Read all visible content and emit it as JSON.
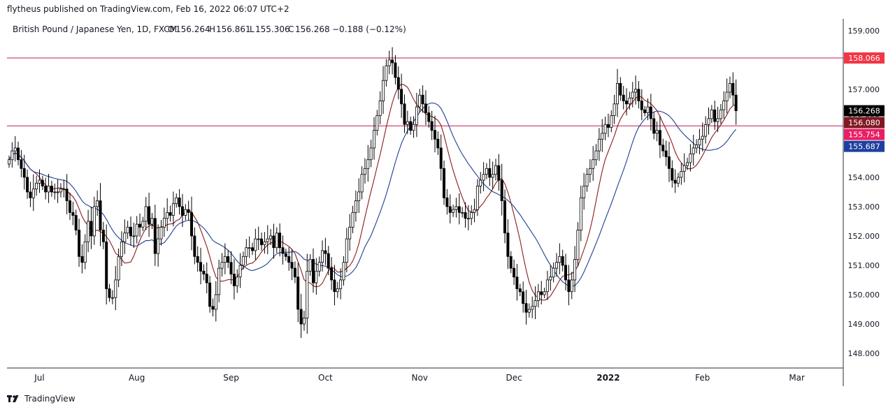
{
  "header": {
    "text": "flytheus published on TradingView.com, Feb 16, 2022 06:07 UTC+2"
  },
  "legend": {
    "symbol": "British Pound / Japanese Yen, 1D, FXCM",
    "open_label": "O",
    "open": "156.264",
    "high_label": "H",
    "high": "156.861",
    "low_label": "L",
    "low": "155.306",
    "close_label": "C",
    "close": "156.268",
    "change": "−0.188 (−0.12%)"
  },
  "footer": {
    "brand": "TradingView"
  },
  "colors": {
    "up_body": "#ffffff",
    "down_body": "#000000",
    "wick": "#000000",
    "ma_fast": "#8b1a1a",
    "ma_slow": "#1f3f8f",
    "hline": "#c2185b",
    "res_tag": "#f23645",
    "close_tag": "#000000",
    "ma_fast_tag": "#801922",
    "ma_slow_tag": "#1e3f9e",
    "sup_tag": "#e91e63",
    "axis_text": "#131722",
    "axis_line": "#2a2e39"
  },
  "chart_data": {
    "type": "candlestick",
    "title": "British Pound / Japanese Yen, 1D, FXCM",
    "ylim": [
      147.5,
      159.4
    ],
    "y_ticks": [
      "159.000",
      "158.000",
      "157.000",
      "156.000",
      "155.000",
      "154.000",
      "153.000",
      "152.000",
      "151.000",
      "150.000",
      "149.000",
      "148.000"
    ],
    "x_ticks": [
      "Jul",
      "Aug",
      "Sep",
      "Oct",
      "Nov",
      "Dec",
      "2022",
      "Feb",
      "Mar"
    ],
    "x_tick_bar_index": [
      10,
      42,
      73,
      104,
      135,
      166,
      197,
      228,
      259
    ],
    "horizontal_lines": [
      {
        "value": 158.066,
        "label": "158.066"
      },
      {
        "value": 155.754,
        "label": "155.754"
      }
    ],
    "price_tags": [
      {
        "label": "158.066",
        "value": 158.066,
        "color": "res_tag"
      },
      {
        "label": "156.268",
        "value": 156.268,
        "color": "close_tag"
      },
      {
        "label": "156.080",
        "value": 156.08,
        "color": "ma_fast_tag"
      },
      {
        "label": "155.754",
        "value": 155.754,
        "color": "sup_tag"
      },
      {
        "label": "155.687",
        "value": 155.687,
        "color": "ma_slow_tag"
      }
    ],
    "moving_averages": [
      {
        "period": 9,
        "color": "ma_fast"
      },
      {
        "period": 20,
        "color": "ma_slow"
      }
    ],
    "closes": [
      154.6,
      154.9,
      155.0,
      154.6,
      154.3,
      154.0,
      153.5,
      153.3,
      153.6,
      153.8,
      153.9,
      153.7,
      153.5,
      153.7,
      153.5,
      153.5,
      153.5,
      153.6,
      153.6,
      153.2,
      152.8,
      152.7,
      152.2,
      151.3,
      151.1,
      151.8,
      152.5,
      152.0,
      153.0,
      153.2,
      152.2,
      151.8,
      150.2,
      149.9,
      149.9,
      150.5,
      151.3,
      151.8,
      152.1,
      152.3,
      152.0,
      152.0,
      152.4,
      152.3,
      152.5,
      153.0,
      152.4,
      152.6,
      151.4,
      151.9,
      152.3,
      152.6,
      152.8,
      152.7,
      153.1,
      153.3,
      153.0,
      152.7,
      152.9,
      152.8,
      152.0,
      151.3,
      151.1,
      150.8,
      150.7,
      150.4,
      149.6,
      149.5,
      150.0,
      150.9,
      151.1,
      151.3,
      151.1,
      150.7,
      150.3,
      150.6,
      151.0,
      151.3,
      151.6,
      151.6,
      151.5,
      151.9,
      151.9,
      151.7,
      151.8,
      151.9,
      152.0,
      151.6,
      152.1,
      151.6,
      151.4,
      151.3,
      151.1,
      150.9,
      150.6,
      149.5,
      149.0,
      149.2,
      150.8,
      151.2,
      150.4,
      150.8,
      151.1,
      151.5,
      151.4,
      150.9,
      150.5,
      150.1,
      150.2,
      150.5,
      151.1,
      151.9,
      152.3,
      152.8,
      153.2,
      153.5,
      154.1,
      154.3,
      154.6,
      155.0,
      155.6,
      156.1,
      156.6,
      157.3,
      157.8,
      158.0,
      157.9,
      157.4,
      157.0,
      156.5,
      155.8,
      155.9,
      155.6,
      155.8,
      156.4,
      156.8,
      156.5,
      156.2,
      155.9,
      155.6,
      155.3,
      155.0,
      154.3,
      153.3,
      153.0,
      152.8,
      152.9,
      153.0,
      152.8,
      152.8,
      152.6,
      152.6,
      152.8,
      152.9,
      153.7,
      153.9,
      154.1,
      154.3,
      154.0,
      154.1,
      154.4,
      153.9,
      153.2,
      152.1,
      151.3,
      150.9,
      150.6,
      150.2,
      150.1,
      149.7,
      149.4,
      149.5,
      149.6,
      149.8,
      150.1,
      150.0,
      150.1,
      150.5,
      150.6,
      150.9,
      151.1,
      151.3,
      151.0,
      150.5,
      150.1,
      150.5,
      151.2,
      152.2,
      153.3,
      153.7,
      154.1,
      154.3,
      154.6,
      154.9,
      155.3,
      155.5,
      155.8,
      155.7,
      156.1,
      156.5,
      157.2,
      156.8,
      156.6,
      156.5,
      156.7,
      156.9,
      157.0,
      156.6,
      156.3,
      156.2,
      156.4,
      156.0,
      155.5,
      155.6,
      155.1,
      154.9,
      154.7,
      154.3,
      153.9,
      153.8,
      154.0,
      154.2,
      154.4,
      154.5,
      154.8,
      155.0,
      155.1,
      155.3,
      155.4,
      155.8,
      156.0,
      156.3,
      155.9,
      156.0,
      156.3,
      156.6,
      156.9,
      157.2,
      156.8,
      156.268
    ]
  }
}
